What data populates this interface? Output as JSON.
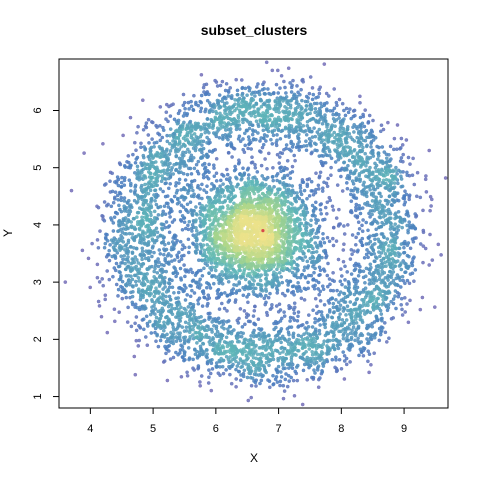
{
  "chart_data": {
    "type": "scatter",
    "title": "subset_clusters",
    "xlabel": "X",
    "ylabel": "Y",
    "xlim": [
      3.5,
      9.7
    ],
    "ylim": [
      0.8,
      6.9
    ],
    "x_ticks": [
      4,
      5,
      6,
      7,
      8,
      9
    ],
    "y_ticks": [
      1,
      2,
      3,
      4,
      5,
      6
    ],
    "grid": false,
    "legend": "none",
    "point_color_meaning": "local point density (purple low to yellow high)",
    "colors": {
      "low_density": "#7E6BB8",
      "ring_density": "#4A7DBF",
      "mid_density": "#5FB8B8",
      "high_density": "#A8D68A",
      "peak_density": "#F2E38A",
      "hotspot": "#D94A4A"
    },
    "series": [
      {
        "shape": "ring",
        "center": [
          6.75,
          3.85
        ],
        "radius_x": 2.05,
        "radius_y": 2.15,
        "spread": 0.3,
        "n_points": 4200,
        "sample_points": [
          [
            4.6,
            3.9
          ],
          [
            8.9,
            3.8
          ],
          [
            6.7,
            6.1
          ],
          [
            6.6,
            1.7
          ],
          [
            5.2,
            5.4
          ],
          [
            8.3,
            5.5
          ],
          [
            5.1,
            2.3
          ],
          [
            8.4,
            2.2
          ],
          [
            4.3,
            3.0
          ],
          [
            9.0,
            4.6
          ],
          [
            6.0,
            1.6
          ],
          [
            7.5,
            6.0
          ]
        ]
      },
      {
        "shape": "blob",
        "center": [
          6.6,
          3.85
        ],
        "sd_x": 0.55,
        "sd_y": 0.55,
        "n_points": 2600,
        "sample_points": [
          [
            6.6,
            3.9
          ],
          [
            6.2,
            4.3
          ],
          [
            7.0,
            3.5
          ],
          [
            6.4,
            3.4
          ],
          [
            6.9,
            4.2
          ],
          [
            6.0,
            3.8
          ],
          [
            7.2,
            4.0
          ],
          [
            6.7,
            4.6
          ]
        ]
      }
    ],
    "outliers": [
      [
        3.7,
        4.6
      ],
      [
        9.4,
        5.3
      ],
      [
        3.6,
        3.0
      ],
      [
        6.9,
        6.7
      ],
      [
        9.4,
        3.3
      ],
      [
        4.7,
        1.7
      ]
    ]
  }
}
